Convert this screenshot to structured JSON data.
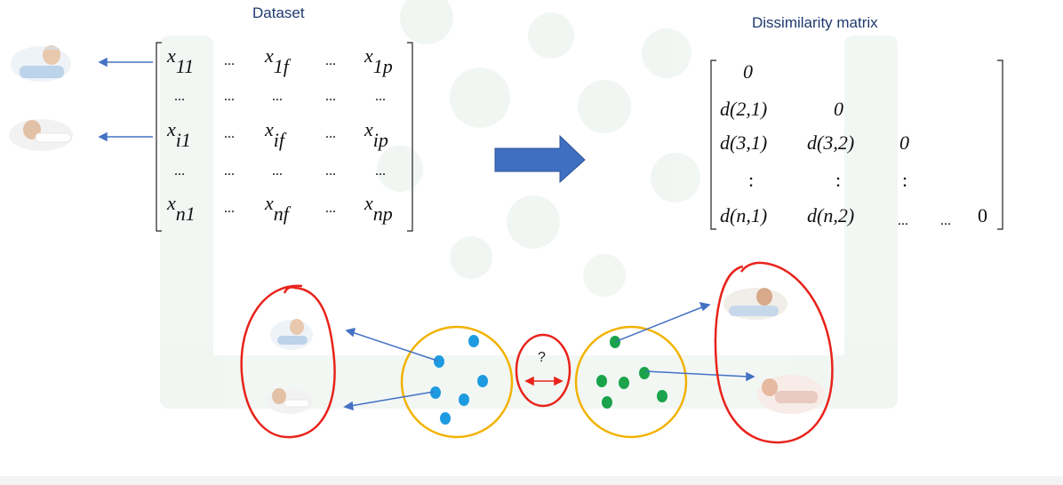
{
  "dataset_title": "Dataset",
  "dissimilarity_title": "Dissimilarity matrix",
  "dataset_matrix": {
    "row1": [
      "x",
      "11",
      "...",
      "x",
      "1f",
      "...",
      "x",
      "1p"
    ],
    "row_dots": "...",
    "rowi": [
      "x",
      "i1",
      "...",
      "x",
      "if",
      "...",
      "x",
      "ip"
    ],
    "rown": [
      "x",
      "n1",
      "...",
      "x",
      "nf",
      "...",
      "x",
      "np"
    ]
  },
  "dissimilarity_matrix": {
    "r1c1": "0",
    "r2c1": "d(2,1)",
    "r2c2": "0",
    "r3c1": "d(3,1)",
    "r3c2": "d(3,2)",
    "r3c3": "0",
    "colon": ":",
    "r5c1": "d(n,1)",
    "r5c2": "d(n,2)",
    "r5c3": "...",
    "r5c4": "...",
    "r5c5": "0"
  },
  "question_mark": "?",
  "colors": {
    "arrow_blue": "#4472c4",
    "big_arrow": "#3f6fc1",
    "red_outline": "#e8231b",
    "yellow_circle": "#f2b200",
    "blue_dot": "#1e9be0",
    "green_dot": "#1aa34a",
    "title_navy": "#1f3a6e"
  },
  "icons": [
    "patient-photo",
    "red-scribble-ellipse",
    "yellow-cluster-circle",
    "double-arrow"
  ]
}
